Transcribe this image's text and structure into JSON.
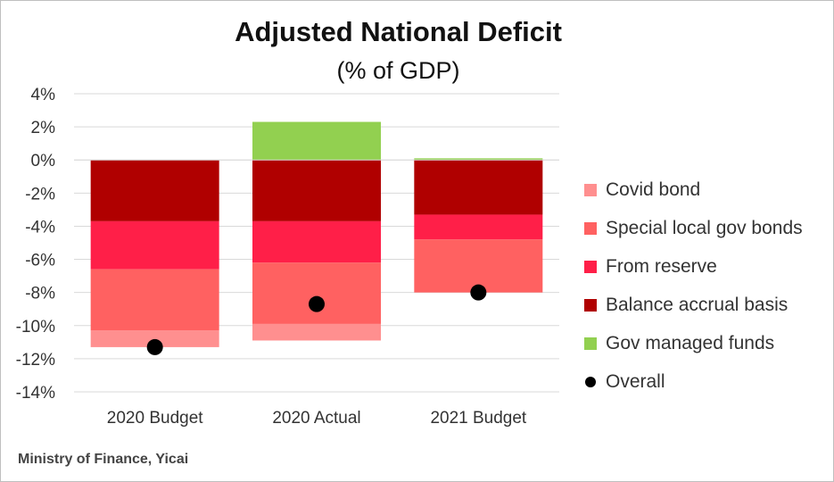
{
  "chart_data": {
    "type": "bar",
    "stacked": true,
    "title": "Adjusted National Deficit",
    "subtitle": "(% of GDP)",
    "ylim": [
      -14,
      4
    ],
    "yticks": [
      4,
      2,
      0,
      -2,
      -4,
      -6,
      -8,
      -10,
      -12,
      -14
    ],
    "ytick_labels": [
      "4%",
      "2%",
      "0%",
      "-2%",
      "-4%",
      "-6%",
      "-8%",
      "-10%",
      "-12%",
      "-14%"
    ],
    "grid": true,
    "legend_position": "right",
    "categories": [
      "2020 Budget",
      "2020 Actual",
      "2021 Budget"
    ],
    "series": [
      {
        "name": "Covid bond",
        "color": "#ff8f8f",
        "values": [
          -1.0,
          -1.0,
          0
        ]
      },
      {
        "name": "Special local gov bonds",
        "color": "#ff6161",
        "values": [
          -3.7,
          -3.7,
          -3.2
        ]
      },
      {
        "name": "From reserve",
        "color": "#ff1f48",
        "values": [
          -2.9,
          -2.5,
          -1.5
        ]
      },
      {
        "name": "Balance accrual basis",
        "color": "#b00000",
        "values": [
          -3.7,
          -3.7,
          -3.3
        ]
      },
      {
        "name": "Gov managed funds",
        "color": "#92d050",
        "values": [
          0,
          2.3,
          0.1
        ]
      }
    ],
    "overall": {
      "name": "Overall",
      "color": "#000000",
      "values": [
        -11.3,
        -8.7,
        -8.0
      ]
    }
  },
  "source": "Ministry of Finance, Yicai"
}
